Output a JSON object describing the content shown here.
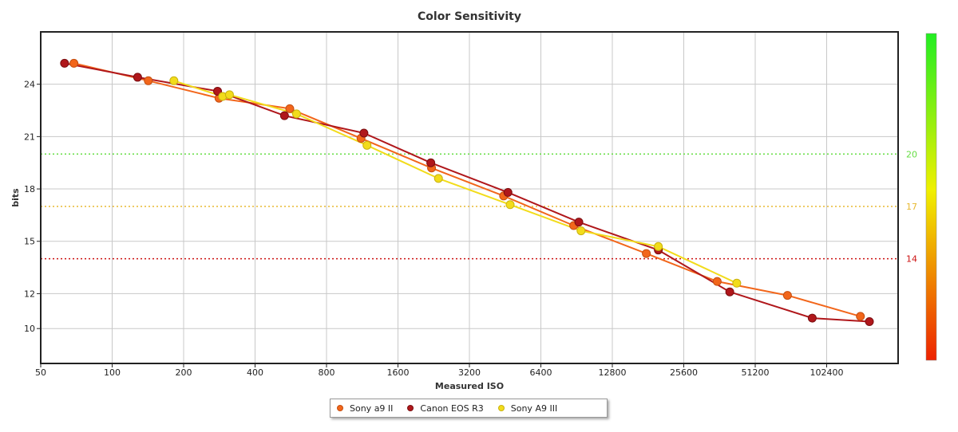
{
  "chart_data": {
    "type": "line",
    "title": "Color Sensitivity",
    "xlabel": "Measured ISO",
    "ylabel": "bits",
    "x_scale": "log2",
    "xlim": [
      50,
      204800
    ],
    "ylim": [
      8,
      27
    ],
    "x_ticks": [
      "50",
      "100",
      "200",
      "400",
      "800",
      "1600",
      "3200",
      "6400",
      "12800",
      "25600",
      "51200",
      "102400"
    ],
    "x_tick_values": [
      50,
      100,
      200,
      400,
      800,
      1600,
      3200,
      6400,
      12800,
      25600,
      51200,
      102400
    ],
    "y_ticks": [
      "10",
      "12",
      "15",
      "18",
      "21",
      "24"
    ],
    "y_tick_values": [
      10,
      12,
      15,
      18,
      21,
      24
    ],
    "reference_lines": [
      {
        "value": 20,
        "label": "20",
        "color": "#66dd44"
      },
      {
        "value": 17,
        "label": "17",
        "color": "#e8b830"
      },
      {
        "value": 14,
        "label": "14",
        "color": "#cc1111"
      }
    ],
    "colorbar": {
      "top_color": "#22ee22",
      "mid_color": "#f0f000",
      "bottom_color": "#ee2200"
    },
    "series": [
      {
        "name": "Sony a9 II",
        "color": "#f2661b",
        "marker_edge": "#c44e10",
        "points": [
          {
            "iso": 69,
            "value": 25.2
          },
          {
            "iso": 142,
            "value": 24.2
          },
          {
            "iso": 282,
            "value": 23.2
          },
          {
            "iso": 560,
            "value": 22.6
          },
          {
            "iso": 1118,
            "value": 20.9
          },
          {
            "iso": 2216,
            "value": 19.2
          },
          {
            "iso": 4460,
            "value": 17.6
          },
          {
            "iso": 8800,
            "value": 15.9
          },
          {
            "iso": 17800,
            "value": 14.3
          },
          {
            "iso": 35400,
            "value": 12.7
          },
          {
            "iso": 70000,
            "value": 11.9
          },
          {
            "iso": 142000,
            "value": 10.7
          }
        ]
      },
      {
        "name": "Canon EOS R3",
        "color": "#b0171b",
        "marker_edge": "#7a0e10",
        "points": [
          {
            "iso": 63,
            "value": 25.2
          },
          {
            "iso": 128,
            "value": 24.4
          },
          {
            "iso": 278,
            "value": 23.6
          },
          {
            "iso": 532,
            "value": 22.2
          },
          {
            "iso": 1150,
            "value": 21.2
          },
          {
            "iso": 2200,
            "value": 19.5
          },
          {
            "iso": 4650,
            "value": 17.8
          },
          {
            "iso": 9250,
            "value": 16.1
          },
          {
            "iso": 20000,
            "value": 14.5
          },
          {
            "iso": 40000,
            "value": 12.1
          },
          {
            "iso": 89000,
            "value": 10.6
          },
          {
            "iso": 155000,
            "value": 10.4
          }
        ]
      },
      {
        "name": "Sony A9 III",
        "color": "#f2dc1b",
        "marker_edge": "#c8b210",
        "points": [
          {
            "iso": 182,
            "value": 24.2
          },
          {
            "iso": 292,
            "value": 23.3
          },
          {
            "iso": 312,
            "value": 23.4
          },
          {
            "iso": 598,
            "value": 22.3
          },
          {
            "iso": 1185,
            "value": 20.5
          },
          {
            "iso": 2370,
            "value": 18.6
          },
          {
            "iso": 4750,
            "value": 17.1
          },
          {
            "iso": 9450,
            "value": 15.6
          },
          {
            "iso": 20000,
            "value": 14.7
          },
          {
            "iso": 42800,
            "value": 12.6
          }
        ]
      }
    ]
  }
}
